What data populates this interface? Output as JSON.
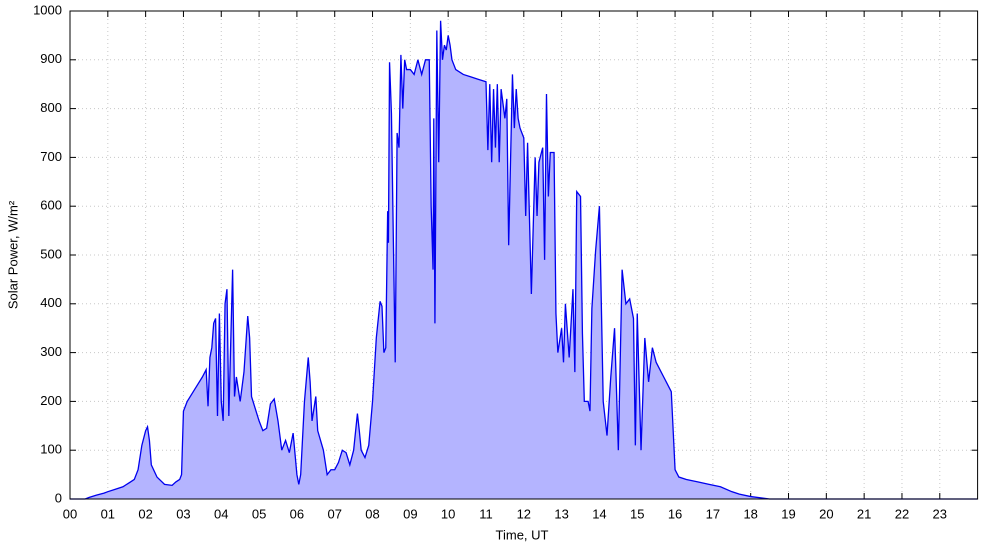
{
  "chart_data": {
    "type": "area",
    "x_label": "Time, UT",
    "y_label": "Solar Power, W/m²",
    "xlim": [
      0,
      24
    ],
    "ylim": [
      0,
      1000
    ],
    "xticks": [
      {
        "value": 0,
        "label": "00"
      },
      {
        "value": 1,
        "label": "01"
      },
      {
        "value": 2,
        "label": "02"
      },
      {
        "value": 3,
        "label": "03"
      },
      {
        "value": 4,
        "label": "04"
      },
      {
        "value": 5,
        "label": "05"
      },
      {
        "value": 6,
        "label": "06"
      },
      {
        "value": 7,
        "label": "07"
      },
      {
        "value": 8,
        "label": "08"
      },
      {
        "value": 9,
        "label": "09"
      },
      10,
      11,
      12,
      13,
      14,
      15,
      16,
      17,
      18,
      19,
      20,
      21,
      22,
      23
    ],
    "yticks": [
      0,
      100,
      200,
      300,
      400,
      500,
      600,
      700,
      800,
      900,
      1000
    ],
    "grid": true,
    "x": [
      0,
      0.4,
      0.5,
      0.7,
      0.9,
      1.0,
      1.2,
      1.4,
      1.6,
      1.7,
      1.8,
      1.9,
      2.0,
      2.05,
      2.1,
      2.15,
      2.3,
      2.5,
      2.7,
      2.8,
      2.9,
      2.95,
      3.0,
      3.1,
      3.3,
      3.5,
      3.6,
      3.65,
      3.7,
      3.75,
      3.8,
      3.85,
      3.9,
      3.95,
      4.0,
      4.05,
      4.1,
      4.15,
      4.2,
      4.3,
      4.35,
      4.4,
      4.5,
      4.6,
      4.7,
      4.75,
      4.8,
      5.0,
      5.1,
      5.2,
      5.3,
      5.4,
      5.5,
      5.6,
      5.7,
      5.8,
      5.9,
      6.0,
      6.05,
      6.1,
      6.2,
      6.3,
      6.35,
      6.4,
      6.5,
      6.55,
      6.7,
      6.8,
      6.9,
      7.0,
      7.1,
      7.2,
      7.3,
      7.4,
      7.5,
      7.6,
      7.65,
      7.7,
      7.8,
      7.9,
      8.0,
      8.1,
      8.2,
      8.25,
      8.3,
      8.35,
      8.4,
      8.42,
      8.45,
      8.5,
      8.6,
      8.65,
      8.7,
      8.75,
      8.8,
      8.85,
      8.9,
      9.0,
      9.1,
      9.2,
      9.3,
      9.4,
      9.5,
      9.55,
      9.6,
      9.62,
      9.65,
      9.7,
      9.75,
      9.8,
      9.85,
      9.9,
      9.95,
      10.0,
      10.05,
      10.1,
      10.2,
      10.4,
      10.6,
      10.8,
      11.0,
      11.05,
      11.1,
      11.15,
      11.2,
      11.25,
      11.3,
      11.35,
      11.4,
      11.5,
      11.55,
      11.6,
      11.7,
      11.75,
      11.8,
      11.85,
      11.9,
      12.0,
      12.05,
      12.1,
      12.2,
      12.3,
      12.35,
      12.4,
      12.5,
      12.55,
      12.6,
      12.65,
      12.7,
      12.8,
      12.85,
      12.9,
      13.0,
      13.05,
      13.1,
      13.2,
      13.3,
      13.35,
      13.4,
      13.5,
      13.55,
      13.6,
      13.7,
      13.75,
      13.8,
      13.9,
      14.0,
      14.1,
      14.2,
      14.3,
      14.4,
      14.5,
      14.6,
      14.7,
      14.8,
      14.9,
      14.95,
      15.0,
      15.1,
      15.2,
      15.3,
      15.4,
      15.5,
      15.7,
      15.9,
      16.0,
      16.1,
      16.3,
      16.6,
      16.9,
      17.2,
      17.5,
      17.7,
      18.0,
      18.3,
      18.5,
      24.0
    ],
    "series": [
      {
        "color": "#0000ee",
        "fill": "#b4b4ff",
        "values": [
          0,
          0,
          3,
          8,
          12,
          15,
          20,
          25,
          35,
          40,
          60,
          110,
          140,
          148,
          120,
          70,
          45,
          30,
          28,
          35,
          40,
          50,
          180,
          200,
          225,
          250,
          265,
          190,
          290,
          310,
          360,
          370,
          170,
          380,
          200,
          160,
          400,
          430,
          170,
          470,
          210,
          250,
          200,
          260,
          375,
          330,
          210,
          160,
          140,
          145,
          195,
          205,
          160,
          100,
          120,
          95,
          135,
          50,
          30,
          50,
          200,
          290,
          240,
          160,
          210,
          140,
          100,
          50,
          60,
          60,
          75,
          100,
          95,
          70,
          100,
          175,
          140,
          100,
          85,
          110,
          200,
          330,
          405,
          395,
          300,
          310,
          590,
          525,
          895,
          790,
          280,
          750,
          720,
          910,
          800,
          900,
          880,
          880,
          870,
          900,
          870,
          900,
          900,
          600,
          470,
          780,
          360,
          960,
          690,
          980,
          900,
          930,
          920,
          950,
          930,
          900,
          880,
          870,
          865,
          860,
          855,
          715,
          850,
          690,
          840,
          720,
          850,
          690,
          840,
          780,
          820,
          520,
          870,
          760,
          840,
          780,
          760,
          740,
          580,
          730,
          420,
          700,
          580,
          690,
          720,
          490,
          830,
          620,
          710,
          710,
          380,
          300,
          350,
          280,
          400,
          290,
          430,
          260,
          630,
          620,
          340,
          200,
          200,
          180,
          390,
          510,
          600,
          200,
          130,
          250,
          350,
          100,
          470,
          400,
          410,
          370,
          110,
          380,
          100,
          330,
          240,
          310,
          280,
          250,
          220,
          60,
          45,
          40,
          35,
          30,
          25,
          15,
          10,
          5,
          2,
          0,
          0
        ]
      }
    ]
  }
}
